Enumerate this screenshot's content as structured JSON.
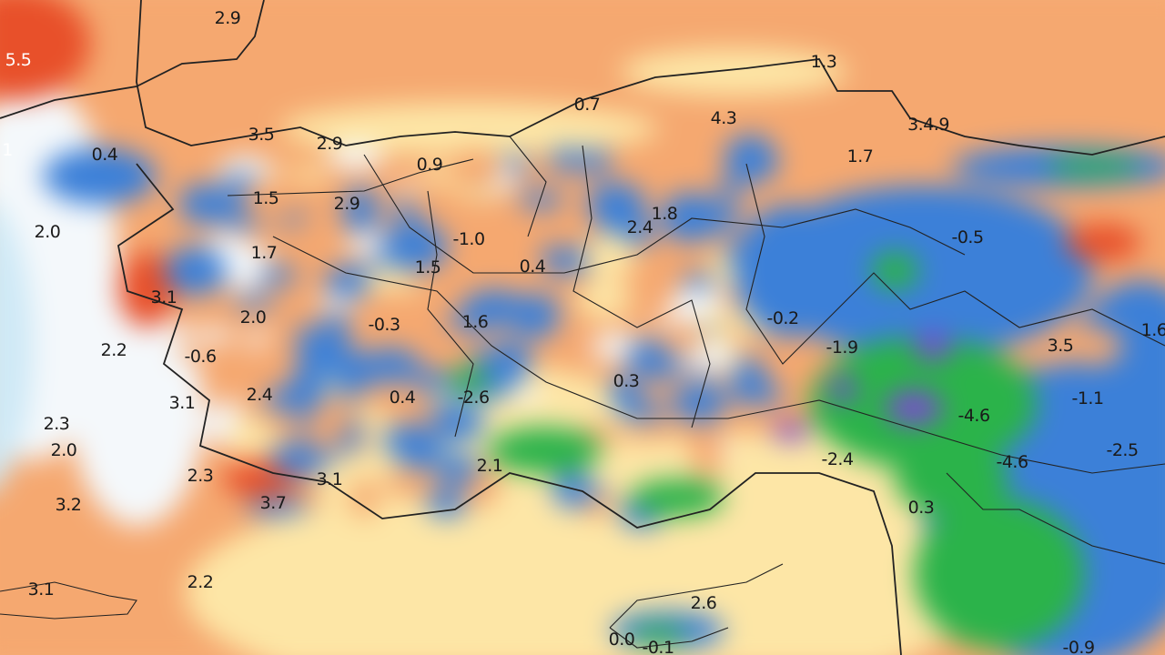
{
  "map": {
    "type": "anomaly map",
    "colors": {
      "strong_warm": "#e8502a",
      "warm": "#f5a870",
      "mild_warm": "#fde6a6",
      "neutral": "#f4f8fb",
      "cool": "#3c80d8",
      "cold": "#2bb34a",
      "very_cold": "#7a4bd0"
    },
    "labels": [
      "5.5",
      "2.9",
      "1",
      "0.4",
      "3.5",
      "2.9",
      "0.9",
      "1.5",
      "2.9",
      "2.0",
      "1.7",
      "-1.0",
      "1.5",
      "0.4",
      "0.7",
      "1.3",
      "4.3",
      "3.4.9",
      "1.7",
      "2.4",
      "1.8",
      "-0.5",
      "2.0",
      "-0.3",
      "1.6",
      "-0.2",
      "2.2",
      "-0.6",
      "2.4",
      "0.4",
      "-2.6",
      "0.3",
      "-1.9",
      "3.5",
      "1.6",
      "-1.1",
      "-4.6",
      "-2.5",
      "-4.6",
      "-2.4",
      "2.1",
      "2.3",
      "2.0",
      "3.2",
      "3.7",
      "2.2",
      "3.1",
      "0.3",
      "2.6",
      "0.0",
      "-0.1",
      "-0.9",
      "3.1",
      "3.1",
      "3.1",
      "2.3"
    ]
  }
}
